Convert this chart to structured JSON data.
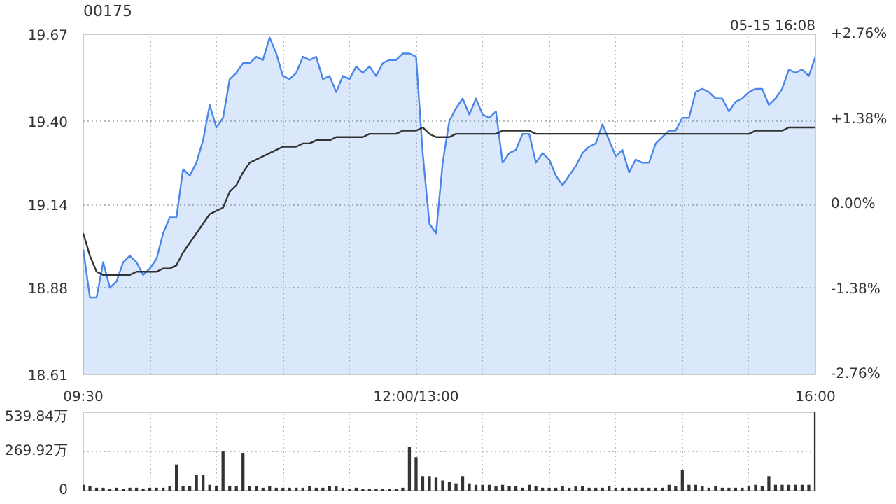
{
  "chart_data": [
    {
      "type": "line",
      "title": "00175",
      "annotations": [
        "05-15 16:08"
      ],
      "grid": true,
      "marker": "none",
      "line_style": "solid",
      "categories": [
        "09:30",
        null,
        null,
        null,
        null,
        null,
        null,
        null,
        null,
        null,
        null,
        null,
        null,
        null,
        null,
        null,
        null,
        null,
        null,
        null,
        null,
        null,
        null,
        null,
        null,
        null,
        null,
        null,
        null,
        null,
        null,
        null,
        null,
        null,
        null,
        null,
        null,
        null,
        null,
        null,
        null,
        null,
        null,
        null,
        null,
        null,
        null,
        null,
        null,
        null,
        "12:00/13:00",
        null,
        null,
        null,
        null,
        null,
        null,
        null,
        null,
        null,
        null,
        null,
        null,
        null,
        null,
        null,
        null,
        null,
        null,
        null,
        null,
        null,
        null,
        null,
        null,
        null,
        null,
        null,
        null,
        null,
        null,
        null,
        null,
        null,
        null,
        null,
        null,
        null,
        null,
        null,
        null,
        null,
        null,
        null,
        null,
        null,
        null,
        null,
        null,
        null,
        null,
        null,
        null,
        null,
        null,
        null,
        null,
        null,
        null,
        null,
        "16:00"
      ],
      "ylim": [
        18.61,
        19.67
      ],
      "yticks": [
        18.61,
        18.88,
        19.14,
        {
          "value": 19.4,
          "label": "19.40"
        },
        19.67
      ],
      "y2lim": [
        -2.76,
        2.76
      ],
      "y2ticks": [
        {
          "value": -2.76,
          "label": "-2.76%"
        },
        {
          "value": -1.38,
          "label": "-1.38%"
        },
        {
          "value": 0,
          "label": "0.00%"
        },
        {
          "value": 1.38,
          "label": "+1.38%"
        },
        {
          "value": 2.76,
          "label": "+2.76%"
        }
      ],
      "series": [
        {
          "type": "area",
          "color": "#4a86e8",
          "values": [
            19.0,
            18.85,
            18.85,
            18.96,
            18.88,
            18.9,
            18.96,
            18.98,
            18.96,
            18.92,
            18.94,
            18.97,
            19.05,
            19.1,
            19.1,
            19.25,
            19.23,
            19.27,
            19.34,
            19.45,
            19.38,
            19.41,
            19.53,
            19.55,
            19.58,
            19.58,
            19.6,
            19.59,
            19.66,
            19.61,
            19.54,
            19.53,
            19.55,
            19.6,
            19.59,
            19.6,
            19.53,
            19.54,
            19.49,
            19.54,
            19.53,
            19.57,
            19.55,
            19.57,
            19.54,
            19.58,
            19.59,
            19.59,
            19.61,
            19.61,
            19.6,
            19.3,
            19.08,
            19.05,
            19.27,
            19.4,
            19.44,
            19.47,
            19.42,
            19.47,
            19.42,
            19.41,
            19.43,
            19.27,
            19.3,
            19.31,
            19.36,
            19.36,
            19.27,
            19.3,
            19.28,
            19.23,
            19.2,
            19.23,
            19.26,
            19.3,
            19.32,
            19.33,
            19.39,
            19.34,
            19.29,
            19.31,
            19.24,
            19.28,
            19.27,
            19.27,
            19.33,
            19.35,
            19.37,
            19.37,
            19.41,
            19.41,
            19.49,
            19.5,
            19.49,
            19.47,
            19.47,
            19.43,
            19.46,
            19.47,
            19.49,
            19.5,
            19.5,
            19.45,
            19.47,
            19.5,
            19.56,
            19.55,
            19.56,
            19.54,
            19.6
          ]
        },
        {
          "type": "line",
          "color": "#333333",
          "values": [
            19.05,
            18.98,
            18.93,
            18.92,
            18.92,
            18.92,
            18.92,
            18.92,
            18.93,
            18.93,
            18.93,
            18.93,
            18.94,
            18.94,
            18.95,
            18.99,
            19.02,
            19.05,
            19.08,
            19.11,
            19.12,
            19.13,
            19.18,
            19.2,
            19.24,
            19.27,
            19.28,
            19.29,
            19.3,
            19.31,
            19.32,
            19.32,
            19.32,
            19.33,
            19.33,
            19.34,
            19.34,
            19.34,
            19.35,
            19.35,
            19.35,
            19.35,
            19.35,
            19.36,
            19.36,
            19.36,
            19.36,
            19.36,
            19.37,
            19.37,
            19.37,
            19.38,
            19.36,
            19.35,
            19.35,
            19.35,
            19.36,
            19.36,
            19.36,
            19.36,
            19.36,
            19.36,
            19.36,
            19.37,
            19.37,
            19.37,
            19.37,
            19.37,
            19.36,
            19.36,
            19.36,
            19.36,
            19.36,
            19.36,
            19.36,
            19.36,
            19.36,
            19.36,
            19.36,
            19.36,
            19.36,
            19.36,
            19.36,
            19.36,
            19.36,
            19.36,
            19.36,
            19.36,
            19.36,
            19.36,
            19.36,
            19.36,
            19.36,
            19.36,
            19.36,
            19.36,
            19.36,
            19.36,
            19.36,
            19.36,
            19.36,
            19.37,
            19.37,
            19.37,
            19.37,
            19.37,
            19.38,
            19.38,
            19.38,
            19.38,
            19.38
          ]
        }
      ]
    },
    {
      "type": "bar",
      "color": "#333333",
      "grid": true,
      "tick_labels": "y",
      "categories": [
        null,
        null,
        null,
        null,
        null,
        null,
        null,
        null,
        null,
        null,
        null,
        null,
        null,
        null,
        null,
        null,
        null,
        null,
        null,
        null,
        null,
        null,
        null,
        null,
        null,
        null,
        null,
        null,
        null,
        null,
        null,
        null,
        null,
        null,
        null,
        null,
        null,
        null,
        null,
        null,
        null,
        null,
        null,
        null,
        null,
        null,
        null,
        null,
        null,
        null,
        null,
        null,
        null,
        null,
        null,
        null,
        null,
        null,
        null,
        null,
        null,
        null,
        null,
        null,
        null,
        null,
        null,
        null,
        null,
        null,
        null,
        null,
        null,
        null,
        null,
        null,
        null,
        null,
        null,
        null,
        null,
        null,
        null,
        null,
        null,
        null,
        null,
        null,
        null,
        null,
        null,
        null,
        null,
        null,
        null,
        null,
        null,
        null,
        null,
        null,
        null,
        null,
        null,
        null,
        null,
        null,
        null,
        null,
        null,
        null,
        null
      ],
      "ylim": [
        0,
        539.84
      ],
      "yticks": [
        0,
        {
          "value": 269.92,
          "label": "269.92万"
        },
        {
          "value": 539.84,
          "label": "539.84万"
        }
      ],
      "values": [
        40,
        30,
        20,
        20,
        10,
        20,
        10,
        20,
        20,
        10,
        20,
        20,
        20,
        30,
        180,
        30,
        30,
        110,
        110,
        40,
        30,
        270,
        30,
        30,
        260,
        30,
        30,
        20,
        30,
        20,
        20,
        20,
        20,
        20,
        30,
        20,
        20,
        30,
        30,
        20,
        10,
        20,
        10,
        10,
        10,
        10,
        10,
        10,
        20,
        300,
        230,
        100,
        100,
        90,
        70,
        60,
        50,
        100,
        50,
        40,
        40,
        40,
        30,
        40,
        30,
        30,
        20,
        40,
        30,
        20,
        20,
        20,
        30,
        20,
        30,
        30,
        20,
        20,
        20,
        30,
        20,
        20,
        20,
        20,
        20,
        20,
        20,
        20,
        40,
        30,
        140,
        40,
        40,
        30,
        20,
        30,
        20,
        20,
        20,
        20,
        30,
        40,
        30,
        100,
        40,
        40,
        40,
        40,
        40,
        40,
        539.84
      ]
    }
  ]
}
